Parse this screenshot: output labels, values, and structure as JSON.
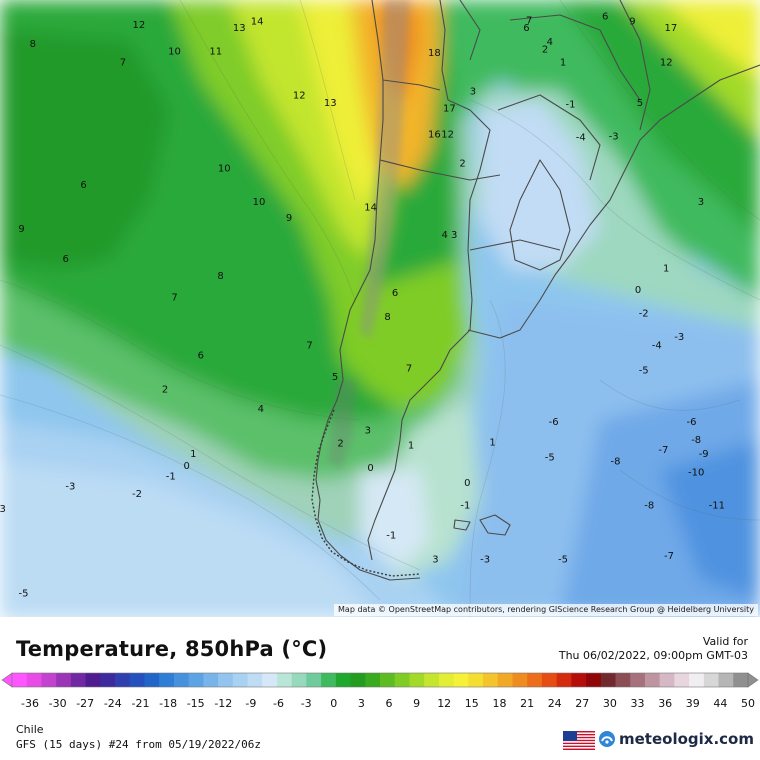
{
  "map": {
    "attribution": "Map data © OpenStreetMap contributors, rendering GIScience Research Group @ Heidelberg University",
    "labels": [
      {
        "t": "12",
        "lon": -100.2,
        "lat": -17.6
      },
      {
        "t": "13",
        "lon": -89.5,
        "lat": -17.9
      },
      {
        "t": "14",
        "lon": -87.6,
        "lat": -17.3
      },
      {
        "t": "8",
        "lon": -111.5,
        "lat": -19.4
      },
      {
        "t": "10",
        "lon": -96.4,
        "lat": -20.1
      },
      {
        "t": "11",
        "lon": -92.0,
        "lat": -20.1
      },
      {
        "t": "7",
        "lon": -101.9,
        "lat": -21.1
      },
      {
        "t": "18",
        "lon": -68.7,
        "lat": -20.2
      },
      {
        "t": "12",
        "lon": -83.1,
        "lat": -24.2
      },
      {
        "t": "13",
        "lon": -79.8,
        "lat": -24.9
      },
      {
        "t": "17",
        "lon": -67.1,
        "lat": -25.4
      },
      {
        "t": "3",
        "lon": -64.6,
        "lat": -23.8
      },
      {
        "t": "16",
        "lon": -68.7,
        "lat": -27.8
      },
      {
        "t": "12",
        "lon": -67.3,
        "lat": -27.8
      },
      {
        "t": "10",
        "lon": -91.1,
        "lat": -31.0
      },
      {
        "t": "2",
        "lon": -65.7,
        "lat": -30.5
      },
      {
        "t": "6",
        "lon": -106.1,
        "lat": -32.5
      },
      {
        "t": "10",
        "lon": -87.4,
        "lat": -34.1
      },
      {
        "t": "14",
        "lon": -75.5,
        "lat": -34.6
      },
      {
        "t": "9",
        "lon": -84.2,
        "lat": -35.6
      },
      {
        "t": "9",
        "lon": -112.7,
        "lat": -36.6
      },
      {
        "t": "4 3",
        "lon": -67.1,
        "lat": -37.2
      },
      {
        "t": "6",
        "lon": -108.0,
        "lat": -39.4
      },
      {
        "t": "8",
        "lon": -91.5,
        "lat": -41.0
      },
      {
        "t": "7",
        "lon": -96.4,
        "lat": -43.0
      },
      {
        "t": "6",
        "lon": -72.9,
        "lat": -42.6
      },
      {
        "t": "8",
        "lon": -73.7,
        "lat": -44.8
      },
      {
        "t": "7",
        "lon": -82.0,
        "lat": -47.5
      },
      {
        "t": "6",
        "lon": -93.6,
        "lat": -48.4
      },
      {
        "t": "5",
        "lon": -79.3,
        "lat": -50.4
      },
      {
        "t": "2",
        "lon": -97.4,
        "lat": -51.6
      },
      {
        "t": "4",
        "lon": -87.2,
        "lat": -53.4
      },
      {
        "t": "7",
        "lon": -71.4,
        "lat": -49.6
      },
      {
        "t": "3",
        "lon": -75.8,
        "lat": -55.4
      },
      {
        "t": "2",
        "lon": -78.7,
        "lat": -56.6
      },
      {
        "t": "1",
        "lon": -71.2,
        "lat": -56.8
      },
      {
        "t": "0",
        "lon": -75.5,
        "lat": -58.9
      },
      {
        "t": "1",
        "lon": -94.4,
        "lat": -57.6
      },
      {
        "t": "0",
        "lon": -95.1,
        "lat": -58.7
      },
      {
        "t": "-1",
        "lon": -96.8,
        "lat": -59.7
      },
      {
        "t": "-2",
        "lon": -100.4,
        "lat": -61.3
      },
      {
        "t": "-3",
        "lon": -107.5,
        "lat": -60.6
      },
      {
        "t": "-3",
        "lon": -114.9,
        "lat": -62.7
      },
      {
        "t": "-1",
        "lon": -73.3,
        "lat": -65.2
      },
      {
        "t": "-5",
        "lon": -112.5,
        "lat": -70.6
      },
      {
        "t": "3",
        "lon": -68.6,
        "lat": -67.4
      },
      {
        "t": "1",
        "lon": -62.5,
        "lat": -56.5
      },
      {
        "t": "0",
        "lon": -65.2,
        "lat": -60.3
      },
      {
        "t": "-1",
        "lon": -65.4,
        "lat": -62.4
      },
      {
        "t": "-3",
        "lon": -63.3,
        "lat": -67.4
      },
      {
        "t": "-5",
        "lon": -55.0,
        "lat": -67.4
      },
      {
        "t": "-7",
        "lon": -43.7,
        "lat": -67.1
      },
      {
        "t": "-8",
        "lon": -45.8,
        "lat": -62.4
      },
      {
        "t": "-11",
        "lon": -38.6,
        "lat": -62.4
      },
      {
        "t": "-6",
        "lon": -56.0,
        "lat": -54.6
      },
      {
        "t": "-5",
        "lon": -56.4,
        "lat": -57.9
      },
      {
        "t": "-8",
        "lon": -49.4,
        "lat": -58.3
      },
      {
        "t": "-7",
        "lon": -44.3,
        "lat": -57.2
      },
      {
        "t": "-8",
        "lon": -40.8,
        "lat": -56.3
      },
      {
        "t": "-9",
        "lon": -40.0,
        "lat": -57.6
      },
      {
        "t": "-10",
        "lon": -40.8,
        "lat": -59.3
      },
      {
        "t": "-6",
        "lon": -41.3,
        "lat": -54.6
      },
      {
        "t": "-3",
        "lon": -42.6,
        "lat": -46.7
      },
      {
        "t": "-4",
        "lon": -45.0,
        "lat": -47.5
      },
      {
        "t": "-5",
        "lon": -46.4,
        "lat": -49.8
      },
      {
        "t": "-2",
        "lon": -46.4,
        "lat": -44.5
      },
      {
        "t": "0",
        "lon": -47.0,
        "lat": -42.3
      },
      {
        "t": "1",
        "lon": -44.0,
        "lat": -40.3
      },
      {
        "t": "3",
        "lon": -40.3,
        "lat": -34.1
      },
      {
        "t": "-1",
        "lon": -54.2,
        "lat": -25.0
      },
      {
        "t": "-3",
        "lon": -49.6,
        "lat": -28.0
      },
      {
        "t": "-4",
        "lon": -53.1,
        "lat": -28.1
      },
      {
        "t": "1",
        "lon": -55.0,
        "lat": -21.1
      },
      {
        "t": "4",
        "lon": -56.4,
        "lat": -19.2
      },
      {
        "t": "2",
        "lon": -56.9,
        "lat": -19.9
      },
      {
        "t": "7",
        "lon": -58.6,
        "lat": -17.2
      },
      {
        "t": "6",
        "lon": -58.9,
        "lat": -17.9
      },
      {
        "t": "6",
        "lon": -50.5,
        "lat": -16.8
      },
      {
        "t": "9",
        "lon": -47.6,
        "lat": -17.3
      },
      {
        "t": "17",
        "lon": -43.5,
        "lat": -17.9
      },
      {
        "t": "12",
        "lon": -44.0,
        "lat": -21.1
      },
      {
        "t": "5",
        "lon": -46.8,
        "lat": -24.9
      }
    ]
  },
  "legend": {
    "title": "Temperature, 850hPa (°C)",
    "valid_label": "Valid for",
    "valid_date": "Thu 06/02/2022, 09:00pm GMT-03",
    "ticks": [
      "-36",
      "-30",
      "-27",
      "-24",
      "-21",
      "-18",
      "-15",
      "-12",
      "-9",
      "-6",
      "-3",
      "0",
      "3",
      "6",
      "9",
      "12",
      "15",
      "18",
      "21",
      "24",
      "27",
      "30",
      "33",
      "36",
      "39",
      "44",
      "50"
    ],
    "colors": [
      "#ff55ff",
      "#e84ce6",
      "#c343cf",
      "#9b35b8",
      "#7128a3",
      "#4f1c8f",
      "#3d2a9c",
      "#2f3fae",
      "#2451bd",
      "#2265c9",
      "#2f7ed6",
      "#4591de",
      "#5ca3e4",
      "#78b4ea",
      "#93c4ef",
      "#a9d1f2",
      "#bedcf4",
      "#d6e8f7",
      "#b9e6d6",
      "#97d9bc",
      "#6fca9c",
      "#3fba5e",
      "#1fa82e",
      "#249c20",
      "#3aab1e",
      "#5cbc22",
      "#7fcc25",
      "#a3da29",
      "#c6e52e",
      "#e2ee34",
      "#f4f138",
      "#f5de32",
      "#f3c42c",
      "#f1a826",
      "#ef8c20",
      "#ec6e1a",
      "#e54d14",
      "#d42a0e",
      "#b50e0a",
      "#8e0608",
      "#732a2f",
      "#8c4d55",
      "#a6707c",
      "#bf94a1",
      "#d6b8c5",
      "#e8d6de",
      "#f0eef1",
      "#d7d7d7",
      "#b5b5b5",
      "#8f8f8f"
    ]
  },
  "region": "Chile",
  "model": "GFS (15 days) #24 from  05/19/2022/06z",
  "brand": {
    "name": "meteologix.com",
    "flag_colors": {
      "stripe_red": "#c8102e",
      "stripe_white": "#ffffff",
      "canton": "#1c3f94"
    }
  }
}
